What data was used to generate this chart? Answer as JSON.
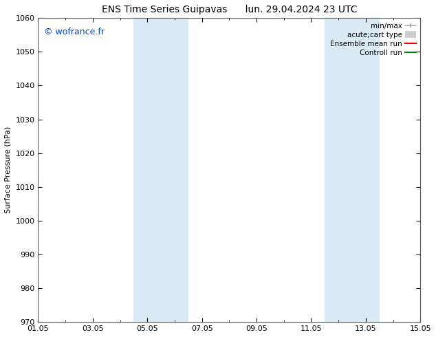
{
  "title_left": "ENS Time Series Guipavas",
  "title_right": "lun. 29.04.2024 23 UTC",
  "ylabel": "Surface Pressure (hPa)",
  "ylim": [
    970,
    1060
  ],
  "yticks": [
    970,
    980,
    990,
    1000,
    1010,
    1020,
    1030,
    1040,
    1050,
    1060
  ],
  "xtick_labels": [
    "01.05",
    "03.05",
    "05.05",
    "07.05",
    "09.05",
    "11.05",
    "13.05",
    "15.05"
  ],
  "xtick_positions_days": [
    0,
    2,
    4,
    6,
    8,
    10,
    12,
    14
  ],
  "shaded_bands": [
    {
      "start_day": 3.5,
      "end_day": 5.5,
      "color": "#daeaf5"
    },
    {
      "start_day": 10.5,
      "end_day": 12.5,
      "color": "#daeaf5"
    }
  ],
  "watermark": "© wofrance.fr",
  "watermark_color": "#0044cc",
  "legend_items": [
    {
      "label": "min/max",
      "color": "#aaaaaa",
      "lw": 1.2,
      "style": "line_with_caps"
    },
    {
      "label": "acute;cart type",
      "color": "#cccccc",
      "lw": 7,
      "style": "thick_line"
    },
    {
      "label": "Ensemble mean run",
      "color": "#ff0000",
      "lw": 1.5,
      "style": "line"
    },
    {
      "label": "Controll run",
      "color": "#008800",
      "lw": 1.5,
      "style": "line"
    }
  ],
  "bg_color": "#ffffff",
  "plot_bg_color": "#ffffff",
  "spine_color": "#555555",
  "title_fontsize": 10,
  "axis_label_fontsize": 8,
  "tick_fontsize": 8,
  "watermark_fontsize": 9,
  "legend_fontsize": 7.5
}
